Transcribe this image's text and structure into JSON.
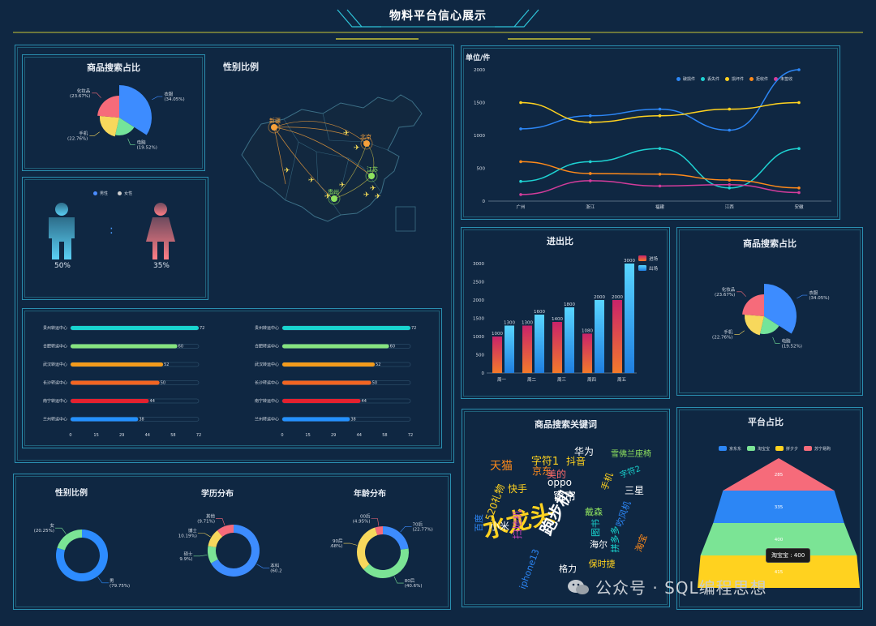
{
  "header": {
    "title": "物料平台信心展示"
  },
  "search_share_left": {
    "title": "商品搜索占比",
    "slices": [
      {
        "name": "衣服",
        "percent": "(34.05%)",
        "value": 34.05,
        "color": "#3d8cff"
      },
      {
        "name": "电脑",
        "percent": "(19.52%)",
        "value": 19.52,
        "color": "#74e49a"
      },
      {
        "name": "手机",
        "percent": "(22.76%)",
        "value": 22.76,
        "color": "#f7d85c"
      },
      {
        "name": "化妆品",
        "percent": "(23.67%)",
        "value": 23.67,
        "color": "#f66b7a"
      }
    ]
  },
  "gender_map": {
    "title": "性别比例",
    "cities": [
      "新疆",
      "北京",
      "江苏",
      "贵州"
    ]
  },
  "gender_figures": {
    "legend": [
      "男性",
      "女性"
    ],
    "male_percent": "50%",
    "female_percent": "35%"
  },
  "transfer_bars": {
    "left": [
      {
        "label": "贵州转运中心",
        "value": 72,
        "color": "#19d4cf"
      },
      {
        "label": "合肥转运中心",
        "value": 60,
        "color": "#86e37f"
      },
      {
        "label": "武汉转运中心",
        "value": 52,
        "color": "#f39b1c"
      },
      {
        "label": "长沙转运中心",
        "value": 50,
        "color": "#f26522"
      },
      {
        "label": "南宁转运中心",
        "value": 44,
        "color": "#e4212f"
      },
      {
        "label": "兰州转运中心",
        "value": 38,
        "color": "#2491ff"
      }
    ],
    "right": [
      {
        "label": "贵州转运中心",
        "value": 72,
        "color": "#19d4cf"
      },
      {
        "label": "合肥转运中心",
        "value": 60,
        "color": "#86e37f"
      },
      {
        "label": "武汉转运中心",
        "value": 52,
        "color": "#f39b1c"
      },
      {
        "label": "长沙转运中心",
        "value": 50,
        "color": "#f26522"
      },
      {
        "label": "南宁转运中心",
        "value": 44,
        "color": "#e4212f"
      },
      {
        "label": "兰州转运中心",
        "value": 38,
        "color": "#2491ff"
      }
    ],
    "axis_ticks": [
      "0",
      "15",
      "29",
      "44",
      "58",
      "72"
    ],
    "max": 72
  },
  "donuts": {
    "gender": {
      "title": "性别比例",
      "slices": [
        {
          "name": "男",
          "percent": "(79.75%)",
          "value": 79.75,
          "color": "#2d8cff"
        },
        {
          "name": "女",
          "percent": "(20.25%)",
          "value": 20.25,
          "color": "#7be495"
        }
      ]
    },
    "education": {
      "title": "学历分布",
      "slices": [
        {
          "name": "本科",
          "percent": "(60.2",
          "value": 60.23,
          "color": "#3d8cff"
        },
        {
          "name": "硕士",
          "percent": "9.9%)",
          "value": 9.9,
          "color": "#7be495"
        },
        {
          "name": "博士",
          "percent": "10.19%)",
          "value": 10.19,
          "color": "#f7d85c"
        },
        {
          "name": "其他",
          "percent": "(9.71%)",
          "value": 9.71,
          "color": "#f66b7a"
        }
      ]
    },
    "age": {
      "title": "年龄分布",
      "slices": [
        {
          "name": "70后",
          "percent": "(22.77%)",
          "value": 22.77,
          "color": "#3d8cff"
        },
        {
          "name": "80后",
          "percent": "(40.6%)",
          "value": 40.6,
          "color": "#7be495"
        },
        {
          "name": "90后",
          "percent": ".68%)",
          "value": 31.68,
          "color": "#f7d85c"
        },
        {
          "name": "00后",
          "percent": "(4.95%)",
          "value": 4.95,
          "color": "#f66b7a"
        }
      ]
    }
  },
  "line_chart": {
    "unit": "单位/件",
    "chart_data": {
      "type": "line",
      "categories": [
        "广州",
        "浙江",
        "福建",
        "江西",
        "安徽"
      ],
      "ylim": [
        0,
        2000
      ],
      "y_ticks": [
        "0",
        "500",
        "1000",
        "1500",
        "2000"
      ],
      "series": [
        {
          "name": "破损件",
          "color": "#2c86f5",
          "values": [
            1100,
            1300,
            1400,
            1080,
            2000
          ]
        },
        {
          "name": "丢失件",
          "color": "#1ed2d2",
          "values": [
            300,
            600,
            800,
            200,
            800
          ]
        },
        {
          "name": "损坏件",
          "color": "#ffd21f",
          "values": [
            1500,
            1200,
            1300,
            1400,
            1500
          ]
        },
        {
          "name": "拒收件",
          "color": "#ff8a1a",
          "values": [
            600,
            420,
            410,
            320,
            200
          ]
        },
        {
          "name": "未签收",
          "color": "#d33c9b",
          "values": [
            100,
            310,
            230,
            250,
            130
          ]
        }
      ]
    }
  },
  "in_out": {
    "title": "进出比",
    "chart_data": {
      "type": "bar",
      "categories": [
        "周一",
        "周二",
        "周三",
        "周四",
        "周五"
      ],
      "ylim": [
        0,
        3000
      ],
      "y_ticks": [
        "0",
        "500",
        "1000",
        "1500",
        "2000",
        "2500",
        "3000"
      ],
      "series": [
        {
          "name": "进场",
          "color": "#e8473c",
          "values": [
            1000,
            1300,
            1400,
            1080,
            2000
          ]
        },
        {
          "name": "出场",
          "color": "#38c4f0",
          "values": [
            1300,
            1600,
            1800,
            2000,
            3000
          ]
        }
      ]
    }
  },
  "search_share_right": {
    "title": "商品搜索占比",
    "slices": [
      {
        "name": "衣服",
        "percent": "(34.05%)"
      },
      {
        "name": "电脑",
        "percent": "(19.52%)"
      },
      {
        "name": "手机",
        "percent": "(22.76%)"
      },
      {
        "name": "化妆品",
        "percent": "(23.67%)"
      }
    ]
  },
  "keywords": {
    "title": "商品搜索关键词",
    "words": [
      {
        "text": "水龙头",
        "color": "#ffd21f",
        "size": 30
      },
      {
        "text": "跑步机",
        "color": "#ffffff",
        "size": 20
      },
      {
        "text": "天猫",
        "color": "#ff8a1a",
        "size": 14
      },
      {
        "text": "字符1",
        "color": "#ffd21f",
        "size": 13
      },
      {
        "text": "抖音",
        "color": "#ffd21f",
        "size": 12
      },
      {
        "text": "华为",
        "color": "#ffffff",
        "size": 12
      },
      {
        "text": "雪佛兰座椅",
        "color": "#8fe35f",
        "size": 10
      },
      {
        "text": "京东",
        "color": "#ff8a1a",
        "size": 12
      },
      {
        "text": "520礼物",
        "color": "#ffd21f",
        "size": 12
      },
      {
        "text": "窗帘",
        "color": "#ffffff",
        "size": 14
      },
      {
        "text": "oppo",
        "color": "#ffffff",
        "size": 12
      },
      {
        "text": "快手",
        "color": "#ffd21f",
        "size": 12
      },
      {
        "text": "三星",
        "color": "#ffffff",
        "size": 12
      },
      {
        "text": "美的",
        "color": "#ff6a6a",
        "size": 12
      },
      {
        "text": "小米",
        "color": "#ffffff",
        "size": 12
      },
      {
        "text": "海尔",
        "color": "#ffffff",
        "size": 11
      },
      {
        "text": "格力",
        "color": "#ffffff",
        "size": 11
      },
      {
        "text": "扫地机",
        "color": "#c53fb7",
        "size": 12
      },
      {
        "text": "iphone13",
        "color": "#2c86f5",
        "size": 11
      },
      {
        "text": "百度",
        "color": "#2c86f5",
        "size": 11
      },
      {
        "text": "拼多多",
        "color": "#19d4cf",
        "size": 11
      },
      {
        "text": "淘宝",
        "color": "#ff8a1a",
        "size": 11
      },
      {
        "text": "图书",
        "color": "#19d4cf",
        "size": 11
      },
      {
        "text": "戴森",
        "color": "#8fe35f",
        "size": 11
      },
      {
        "text": "手机",
        "color": "#ffd21f",
        "size": 11
      },
      {
        "text": "吹风机",
        "color": "#2c86f5",
        "size": 11
      },
      {
        "text": "保时捷",
        "color": "#ffd21f",
        "size": 11
      },
      {
        "text": "字符2",
        "color": "#19d4cf",
        "size": 10
      }
    ]
  },
  "platform": {
    "title": "平台占比",
    "legend": [
      {
        "name": "京东东",
        "color": "#2c86f5"
      },
      {
        "name": "淘宝宝",
        "color": "#7be495"
      },
      {
        "name": "拼夕夕",
        "color": "#ffd21f"
      },
      {
        "name": "苏宁易购",
        "color": "#f66b7a"
      }
    ],
    "chart_data": {
      "type": "funnel",
      "levels": [
        {
          "name": "苏宁易购",
          "value": 285,
          "color": "#f66b7a"
        },
        {
          "name": "京东东",
          "value": 335,
          "color": "#2c86f5"
        },
        {
          "name": "淘宝宝",
          "value": 400,
          "color": "#7be495"
        },
        {
          "name": "拼夕夕",
          "value": 415,
          "color": "#ffd21f"
        }
      ]
    },
    "tooltip": "淘宝宝 : 400"
  },
  "watermark": "公众号 · SQL编程思想"
}
